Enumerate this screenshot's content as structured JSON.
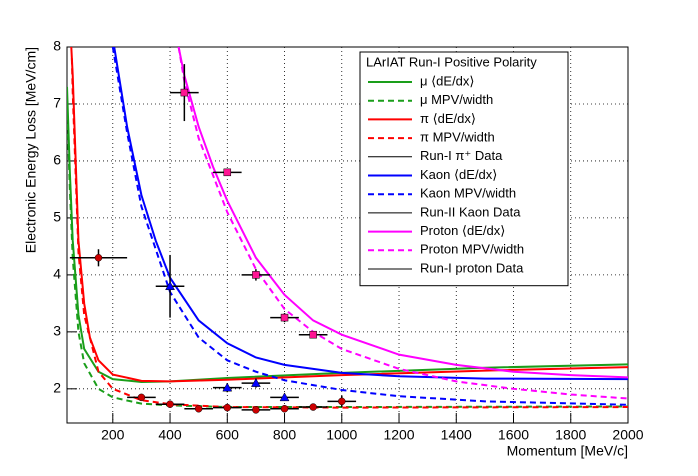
{
  "chart_data": {
    "type": "line",
    "xlabel": "Momentum [MeV/c]",
    "ylabel": "Electronic Energy Loss [MeV/cm]",
    "legend_title": "LArIAT Run-I Positive Polarity",
    "legend": "top-right",
    "grid": true,
    "xlim": [
      40,
      2000
    ],
    "ylim": [
      1.4,
      8
    ],
    "xticks": [
      200,
      400,
      600,
      800,
      1000,
      1200,
      1400,
      1600,
      1800,
      2000
    ],
    "yticks": [
      2,
      3,
      4,
      5,
      6,
      7,
      8
    ],
    "series": [
      {
        "name": "μ ⟨dE/dx⟩",
        "color": "#1a9e1a",
        "dash": false,
        "x": [
          40,
          50,
          60,
          80,
          100,
          150,
          200,
          300,
          400,
          600,
          1000,
          1500,
          2000
        ],
        "values": [
          7.3,
          5.8,
          4.6,
          3.3,
          2.7,
          2.3,
          2.17,
          2.12,
          2.13,
          2.19,
          2.28,
          2.37,
          2.43
        ]
      },
      {
        "name": "μ MPV/width",
        "color": "#1a9e1a",
        "dash": true,
        "x": [
          40,
          50,
          60,
          80,
          100,
          150,
          200,
          300,
          400,
          600,
          1000,
          2000
        ],
        "values": [
          7.0,
          5.5,
          4.3,
          3.0,
          2.45,
          2.0,
          1.85,
          1.74,
          1.71,
          1.68,
          1.68,
          1.69
        ]
      },
      {
        "name": "π ⟨dE/dx⟩",
        "color": "#ff0000",
        "dash": false,
        "x": [
          55,
          60,
          80,
          100,
          120,
          150,
          200,
          300,
          400,
          600,
          1000,
          1500,
          2000
        ],
        "values": [
          8,
          7.5,
          4.6,
          3.5,
          2.9,
          2.5,
          2.25,
          2.14,
          2.13,
          2.16,
          2.24,
          2.32,
          2.38
        ]
      },
      {
        "name": "π MPV/width",
        "color": "#ff0000",
        "dash": true,
        "x": [
          57,
          60,
          80,
          100,
          150,
          200,
          300,
          400,
          600,
          1000,
          2000
        ],
        "values": [
          7.8,
          7.2,
          4.4,
          3.3,
          2.3,
          2.0,
          1.8,
          1.73,
          1.68,
          1.67,
          1.68
        ]
      },
      {
        "name": "Run-I π⁺ Data",
        "color": "#cc0000",
        "marker": "circle",
        "x": [
          150,
          300,
          400,
          500,
          600,
          700,
          800,
          900,
          1000
        ],
        "values": [
          4.3,
          1.85,
          1.73,
          1.65,
          1.67,
          1.63,
          1.65,
          1.68,
          1.78
        ],
        "xerr": [
          100,
          50,
          50,
          50,
          50,
          50,
          50,
          50,
          50
        ],
        "yerr": [
          0.15,
          0.05,
          0.05,
          0.04,
          0.04,
          0.04,
          0.04,
          0.04,
          0.1
        ]
      },
      {
        "name": "Kaon ⟨dE/dx⟩",
        "color": "#0000ff",
        "dash": false,
        "x": [
          205,
          250,
          300,
          350,
          400,
          500,
          600,
          700,
          800,
          1000,
          1200,
          1500,
          2000
        ],
        "values": [
          8,
          6.6,
          5.4,
          4.6,
          3.95,
          3.2,
          2.8,
          2.55,
          2.42,
          2.28,
          2.22,
          2.18,
          2.17
        ]
      },
      {
        "name": "Kaon MPV/width",
        "color": "#0000ff",
        "dash": true,
        "x": [
          200,
          250,
          300,
          400,
          500,
          600,
          700,
          800,
          1000,
          1200,
          1500,
          2000
        ],
        "values": [
          8,
          6.5,
          5.2,
          3.7,
          2.9,
          2.5,
          2.3,
          2.15,
          1.98,
          1.87,
          1.78,
          1.72
        ]
      },
      {
        "name": "Run-II Kaon Data",
        "color": "#0000ff",
        "marker": "triangle",
        "x": [
          400,
          600,
          700,
          800
        ],
        "values": [
          3.8,
          2.02,
          2.1,
          1.85
        ],
        "xerr": [
          50,
          50,
          50,
          50
        ],
        "yerr": [
          0.55,
          0.08,
          0.08,
          0.06
        ]
      },
      {
        "name": "Proton ⟨dE/dx⟩",
        "color": "#ff00ff",
        "dash": false,
        "x": [
          430,
          450,
          500,
          550,
          600,
          700,
          800,
          900,
          1000,
          1200,
          1400,
          1600,
          1800,
          2000
        ],
        "values": [
          8,
          7.5,
          6.6,
          5.9,
          5.3,
          4.3,
          3.65,
          3.2,
          2.95,
          2.6,
          2.42,
          2.3,
          2.24,
          2.2
        ]
      },
      {
        "name": "Proton MPV/width",
        "color": "#ff00ff",
        "dash": true,
        "x": [
          430,
          450,
          500,
          600,
          700,
          800,
          900,
          1000,
          1200,
          1400,
          1600,
          1800,
          2000
        ],
        "values": [
          8,
          7.4,
          6.4,
          5.1,
          4.1,
          3.4,
          3.0,
          2.7,
          2.35,
          2.13,
          2.0,
          1.9,
          1.83
        ]
      },
      {
        "name": "Run-I proton Data",
        "color": "#ff1493",
        "marker": "square",
        "x": [
          450,
          600,
          700,
          800,
          900
        ],
        "values": [
          7.2,
          5.8,
          4.0,
          3.25,
          2.95
        ],
        "xerr": [
          50,
          50,
          50,
          50,
          50
        ],
        "yerr": [
          0.5,
          0.05,
          0.1,
          0.08,
          0.06
        ]
      }
    ]
  }
}
